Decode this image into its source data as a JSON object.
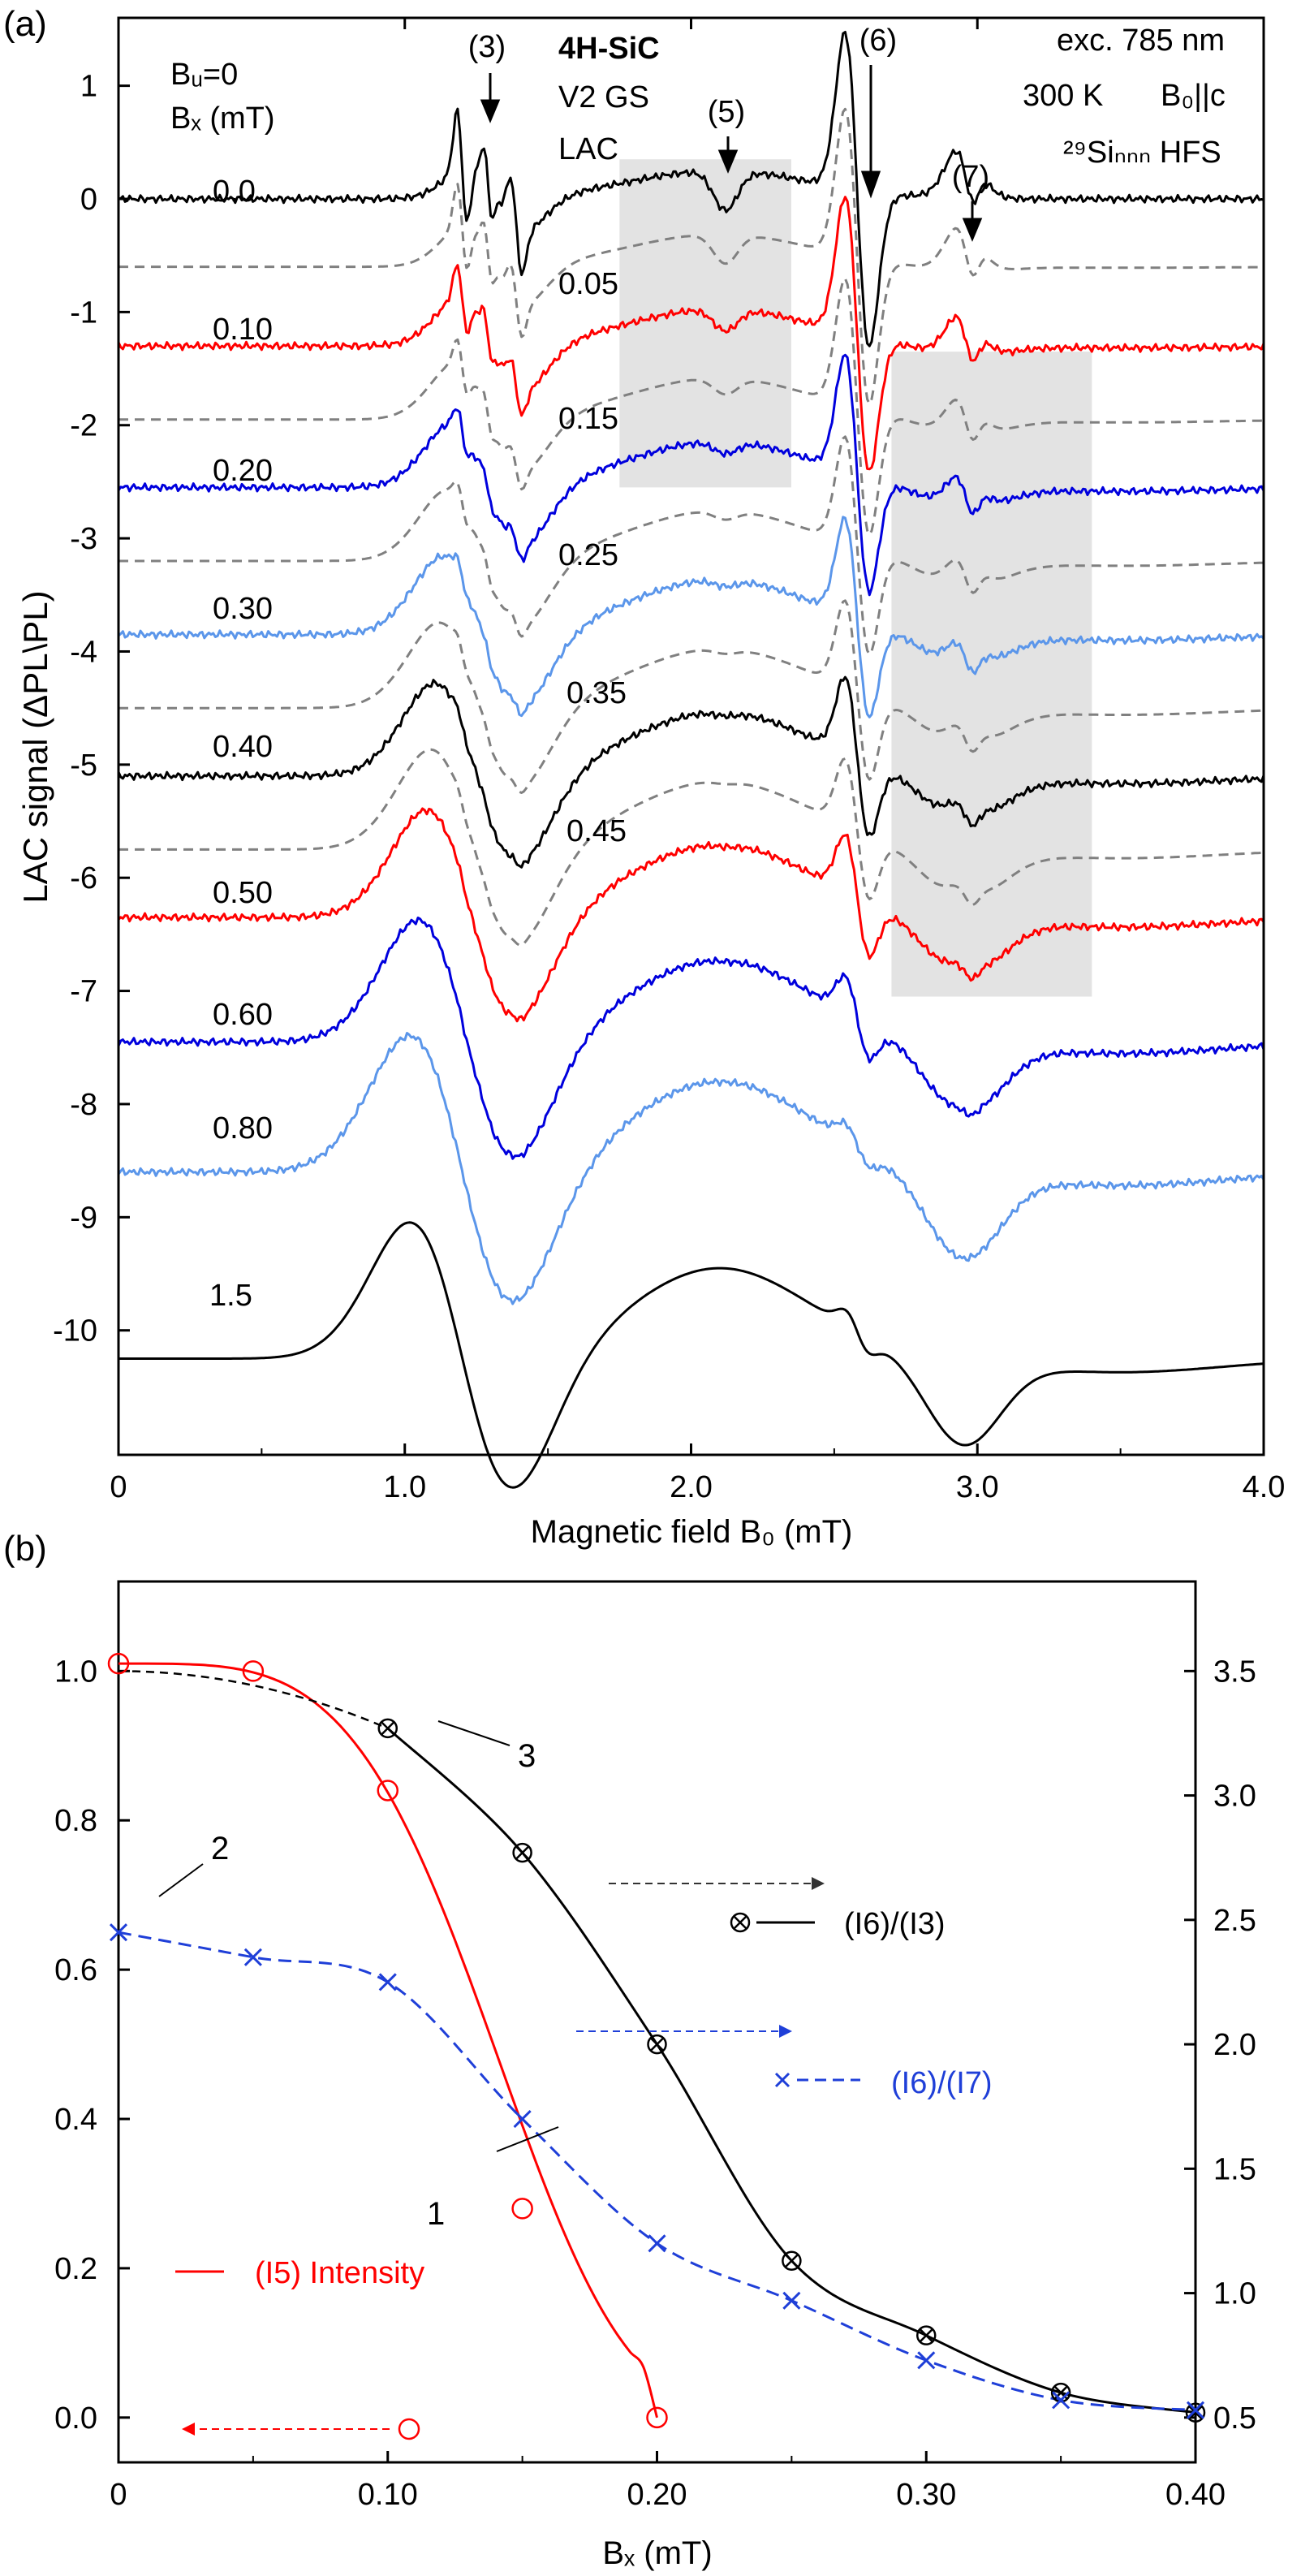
{
  "panel_a": {
    "label": "(a)",
    "ylabel": "LAC signal  (ΔPL\\PL)",
    "xlabel": "Magnetic field B₀ (mT)",
    "xticks": [
      "0",
      "1.0",
      "2.0",
      "3.0",
      "4.0"
    ],
    "yticks": [
      "1",
      "0",
      "-1",
      "-2",
      "-3",
      "-4",
      "-5",
      "-6",
      "-7",
      "-8",
      "-9",
      "-10"
    ],
    "legend_head_1": "Bᵤ=0",
    "legend_head_2": "Bₓ (mT)",
    "sample": "4H-SiC",
    "state": "V2 GS",
    "mode": "LAC",
    "excitation": "exc. 785 nm",
    "temperature": "300 K",
    "orientation": "B₀||c",
    "hfs_label": "²⁹Siₙₙₙ HFS",
    "markers": [
      "(3)",
      "(5)",
      "(6)",
      "(7)"
    ],
    "dashed_labels": [
      "0.05",
      "0.15",
      "0.25",
      "0.35",
      "0.45"
    ]
  },
  "panel_b": {
    "label": "(b)",
    "xlabel": "Bₓ (mT)",
    "xticks": [
      "0",
      "0.10",
      "0.20",
      "0.30",
      "0.40"
    ],
    "yticks_left": [
      "0.0",
      "0.2",
      "0.4",
      "0.6",
      "0.8",
      "1.0"
    ],
    "yticks_right": [
      "0.5",
      "1.0",
      "1.5",
      "2.0",
      "2.5",
      "3.0",
      "3.5"
    ],
    "curve_labels": [
      "1",
      "2",
      "3"
    ],
    "legend_i6_i3": "(I6)/(I3)",
    "legend_i6_i7": "(I6)/(I7)",
    "legend_i5": "(I5) Intensity"
  },
  "chart_data": [
    {
      "type": "line",
      "panel": "a",
      "xlabel": "Magnetic field B₀ (mT)",
      "ylabel": "LAC signal  (ΔPL\\PL)",
      "xlim": [
        0,
        4.0
      ],
      "ylim": [
        -11.1,
        1.6
      ],
      "grid": false,
      "series": [
        {
          "name": "0.0",
          "offset": 0.0,
          "color": "#000000",
          "style": "solid"
        },
        {
          "name": "0.05",
          "offset": -0.6,
          "color": "#808080",
          "style": "dashed"
        },
        {
          "name": "0.10",
          "offset": -1.3,
          "color": "#ff0000",
          "style": "solid"
        },
        {
          "name": "0.15",
          "offset": -1.95,
          "color": "#808080",
          "style": "dashed"
        },
        {
          "name": "0.20",
          "offset": -2.55,
          "color": "#0000dd",
          "style": "solid"
        },
        {
          "name": "0.25",
          "offset": -3.2,
          "color": "#808080",
          "style": "dashed"
        },
        {
          "name": "0.30",
          "offset": -3.85,
          "color": "#5b96ea",
          "style": "solid"
        },
        {
          "name": "0.35",
          "offset": -4.5,
          "color": "#808080",
          "style": "dashed"
        },
        {
          "name": "0.40",
          "offset": -5.1,
          "color": "#000000",
          "style": "solid"
        },
        {
          "name": "0.45",
          "offset": -5.75,
          "color": "#808080",
          "style": "dashed"
        },
        {
          "name": "0.50",
          "offset": -6.35,
          "color": "#ff0000",
          "style": "solid"
        },
        {
          "name": "0.60",
          "offset": -7.45,
          "color": "#0000dd",
          "style": "solid"
        },
        {
          "name": "0.80",
          "offset": -8.6,
          "color": "#5b96ea",
          "style": "solid"
        },
        {
          "name": "1.5",
          "offset": -10.25,
          "color": "#000000",
          "style": "solid"
        }
      ],
      "shaded_regions": [
        {
          "x": [
            1.75,
            2.35
          ],
          "y": [
            -2.55,
            0.35
          ]
        },
        {
          "x": [
            2.7,
            3.4
          ],
          "y": [
            -7.05,
            -1.35
          ]
        }
      ]
    },
    {
      "type": "line",
      "panel": "b",
      "xlabel": "Bₓ (mT)",
      "xlim": [
        0,
        0.4
      ],
      "ylim_left": [
        -0.06,
        1.12
      ],
      "ylim_right": [
        0.5,
        3.5
      ],
      "series": [
        {
          "name": "(I5) Intensity",
          "axis": "left",
          "color": "#ff0000",
          "x": [
            0,
            0.05,
            0.1,
            0.15,
            0.2
          ],
          "y": [
            1.01,
            1.0,
            0.84,
            0.28,
            0.0
          ]
        },
        {
          "name": "(I6)/(I3)",
          "axis": "right",
          "color": "#000000",
          "x": [
            0.1,
            0.15,
            0.2,
            0.25,
            0.3,
            0.35,
            0.4
          ],
          "y": [
            3.27,
            2.77,
            2.0,
            1.13,
            0.83,
            0.6,
            0.52
          ]
        },
        {
          "name": "(I6)/(I7)",
          "axis": "right",
          "color": "#1f3fd8",
          "x": [
            0,
            0.05,
            0.1,
            0.15,
            0.2,
            0.25,
            0.3,
            0.35,
            0.4
          ],
          "y": [
            2.45,
            2.35,
            2.25,
            1.7,
            1.2,
            0.97,
            0.73,
            0.57,
            0.53
          ]
        }
      ]
    }
  ]
}
